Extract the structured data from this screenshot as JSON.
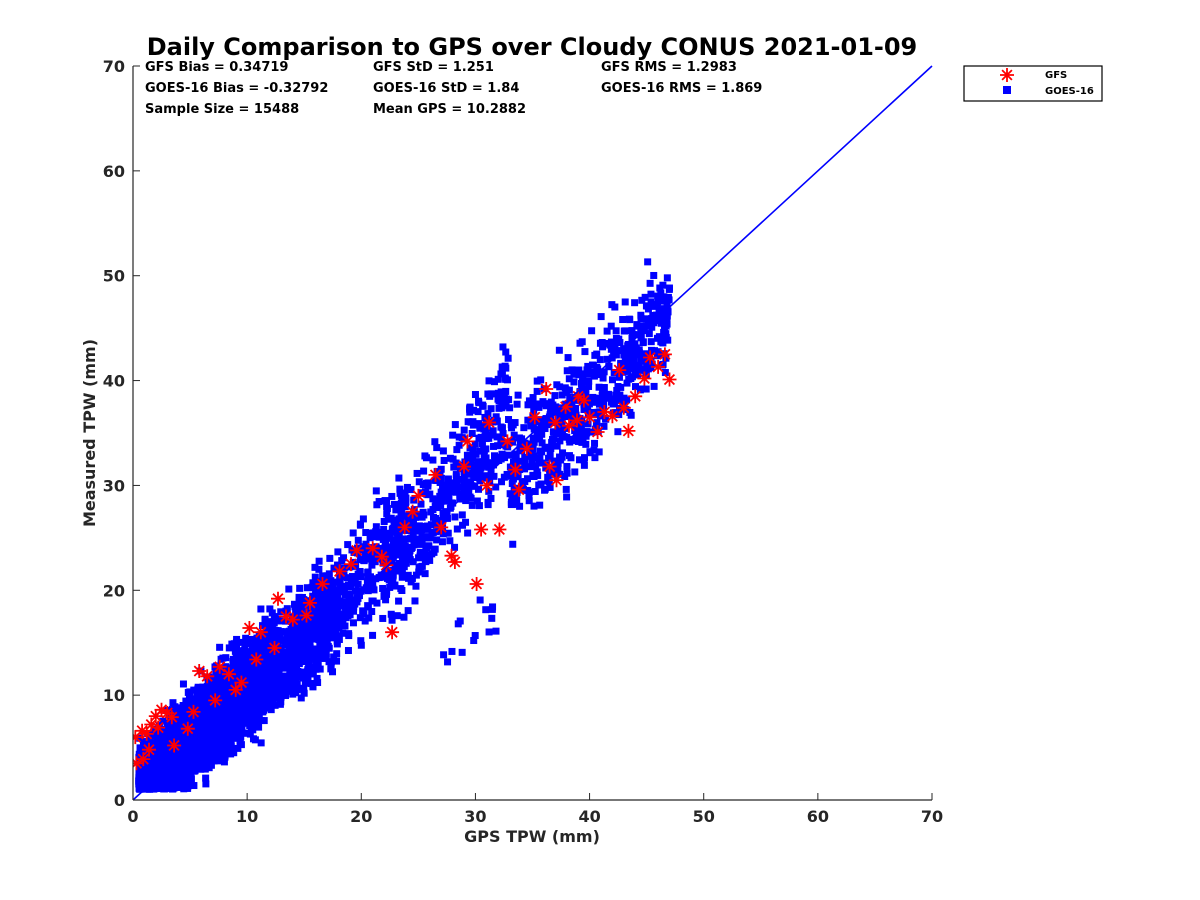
{
  "chart_data": {
    "type": "scatter",
    "title": "Daily Comparison to GPS over Cloudy CONUS 2021-01-09",
    "xlabel": "GPS TPW (mm)",
    "ylabel": "Measured TPW (mm)",
    "xlim": [
      0,
      70
    ],
    "ylim": [
      0,
      70
    ],
    "xticks": [
      0,
      10,
      20,
      30,
      40,
      50,
      60,
      70
    ],
    "yticks": [
      0,
      10,
      20,
      30,
      40,
      50,
      60,
      70
    ],
    "grid": false,
    "legend_position": "outside-top-right",
    "colors": {
      "gfs": "#ff0000",
      "goes": "#0000ff",
      "line": "#0000ff",
      "axis": "#262626"
    },
    "stats": [
      {
        "label": "GFS Bias = 0.34719"
      },
      {
        "label": "GFS StD = 1.251"
      },
      {
        "label": "GFS RMS = 1.2983"
      },
      {
        "label": "GOES-16 Bias = -0.32792"
      },
      {
        "label": "GOES-16 StD = 1.84"
      },
      {
        "label": "GOES-16 RMS = 1.869"
      },
      {
        "label": "Sample Size = 15488"
      },
      {
        "label": "Mean GPS = 10.2882"
      }
    ],
    "reference_line": {
      "name": "1:1",
      "x": [
        0,
        70
      ],
      "y": [
        0,
        70
      ]
    },
    "series": [
      {
        "name": "GFS",
        "marker": "asterisk",
        "color": "#ff0000",
        "points": [
          [
            0.3,
            3.5
          ],
          [
            0.2,
            6.0
          ],
          [
            0.8,
            6.6
          ],
          [
            1.2,
            6.3
          ],
          [
            1.6,
            7.2
          ],
          [
            2.0,
            8.0
          ],
          [
            2.5,
            8.6
          ],
          [
            3.0,
            8.3
          ],
          [
            3.4,
            7.9
          ],
          [
            2.2,
            6.9
          ],
          [
            1.4,
            4.8
          ],
          [
            0.9,
            3.9
          ],
          [
            3.6,
            5.2
          ],
          [
            5.8,
            12.3
          ],
          [
            6.5,
            11.8
          ],
          [
            7.6,
            12.7
          ],
          [
            9.5,
            11.2
          ],
          [
            10.2,
            16.4
          ],
          [
            11.2,
            16.0
          ],
          [
            12.7,
            19.2
          ],
          [
            13.4,
            17.5
          ],
          [
            14.0,
            17.2
          ],
          [
            15.2,
            17.6
          ],
          [
            16.6,
            20.6
          ],
          [
            18.1,
            21.8
          ],
          [
            19.1,
            22.5
          ],
          [
            19.6,
            23.8
          ],
          [
            21.0,
            24.0
          ],
          [
            21.8,
            23.2
          ],
          [
            22.7,
            16.0
          ],
          [
            22.2,
            22.4
          ],
          [
            23.8,
            26.0
          ],
          [
            24.5,
            27.5
          ],
          [
            25.0,
            29.0
          ],
          [
            26.5,
            31.0
          ],
          [
            27.0,
            26.0
          ],
          [
            27.9,
            23.3
          ],
          [
            28.2,
            22.7
          ],
          [
            29.0,
            31.8
          ],
          [
            29.3,
            34.2
          ],
          [
            30.1,
            20.6
          ],
          [
            30.5,
            25.8
          ],
          [
            31.0,
            30.0
          ],
          [
            31.2,
            36.0
          ],
          [
            32.1,
            25.8
          ],
          [
            32.8,
            34.2
          ],
          [
            33.5,
            31.5
          ],
          [
            33.8,
            29.6
          ],
          [
            34.5,
            33.5
          ],
          [
            35.2,
            36.5
          ],
          [
            36.2,
            39.2
          ],
          [
            36.5,
            31.8
          ],
          [
            37.1,
            30.5
          ],
          [
            37.9,
            37.5
          ],
          [
            38.2,
            35.7
          ],
          [
            38.9,
            36.2
          ],
          [
            39.5,
            38.1
          ],
          [
            40.0,
            36.5
          ],
          [
            40.7,
            35.1
          ],
          [
            41.3,
            37.0
          ],
          [
            42.0,
            36.6
          ],
          [
            42.6,
            41.0
          ],
          [
            43.4,
            35.2
          ],
          [
            44.0,
            38.5
          ],
          [
            44.8,
            40.2
          ],
          [
            45.3,
            42.2
          ],
          [
            46.0,
            41.3
          ],
          [
            46.6,
            42.5
          ],
          [
            47.0,
            40.1
          ],
          [
            43.0,
            37.4
          ],
          [
            39.0,
            38.5
          ],
          [
            37.0,
            36.0
          ],
          [
            15.5,
            18.8
          ],
          [
            12.4,
            14.5
          ],
          [
            9.0,
            10.5
          ],
          [
            7.2,
            9.5
          ],
          [
            4.8,
            6.8
          ],
          [
            5.3,
            8.4
          ],
          [
            8.4,
            12.0
          ],
          [
            10.8,
            13.4
          ]
        ]
      },
      {
        "name": "GOES-16",
        "marker": "square",
        "color": "#0000ff",
        "clusters": [
          {
            "x0": 0.5,
            "x1": 8.0,
            "y0": 1.5,
            "y1": 9.0,
            "n": 1500
          },
          {
            "x0": 3.0,
            "x1": 12.5,
            "y0": 3.5,
            "y1": 14.0,
            "n": 1500
          },
          {
            "x0": 8.0,
            "x1": 18.0,
            "y0": 8.0,
            "y1": 19.0,
            "n": 800
          },
          {
            "x0": 14.0,
            "x1": 24.0,
            "y0": 13.0,
            "y1": 26.5,
            "n": 450
          },
          {
            "x0": 22.0,
            "x1": 33.0,
            "y0": 21.5,
            "y1": 37.5,
            "n": 450
          },
          {
            "x0": 33.0,
            "x1": 47.0,
            "y0": 31.0,
            "y1": 46.0,
            "n": 600
          },
          {
            "x0": 27.0,
            "x1": 32.0,
            "y0": 13.0,
            "y1": 19.0,
            "n": 15
          }
        ]
      }
    ]
  }
}
